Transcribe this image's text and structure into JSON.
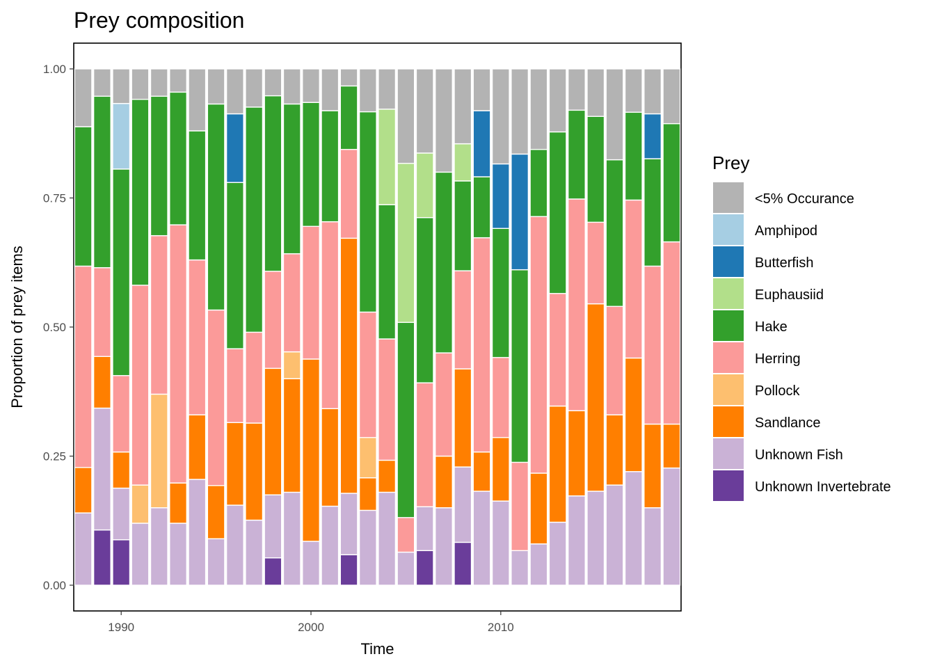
{
  "chart_data": {
    "type": "bar",
    "stacked": true,
    "title": "Prey composition",
    "xlabel": "Time",
    "ylabel": "Proportion of prey items",
    "xlim": [
      1987.5,
      2019.5
    ],
    "ylim": [
      0,
      1
    ],
    "x_ticks": [
      1990,
      2000,
      2010
    ],
    "y_ticks": [
      "0.00",
      "0.25",
      "0.50",
      "0.75",
      "1.00"
    ],
    "grid": false,
    "legend": {
      "title": "Prey",
      "position": "right",
      "entries": [
        {
          "name": "<5% Occurance",
          "color": "#b3b3b3"
        },
        {
          "name": "Amphipod",
          "color": "#a6cee3"
        },
        {
          "name": "Butterfish",
          "color": "#1f78b4"
        },
        {
          "name": "Euphausiid",
          "color": "#b2df8a"
        },
        {
          "name": "Hake",
          "color": "#33a02c"
        },
        {
          "name": "Herring",
          "color": "#fb9a99"
        },
        {
          "name": "Pollock",
          "color": "#fdbf6f"
        },
        {
          "name": "Sandlance",
          "color": "#ff7f00"
        },
        {
          "name": "Unknown Fish",
          "color": "#cab2d6"
        },
        {
          "name": "Unknown Invertebrate",
          "color": "#6a3d9a"
        }
      ]
    },
    "stack_order_bottom_to_top": [
      "Unknown Invertebrate",
      "Unknown Fish",
      "Sandlance",
      "Pollock",
      "Herring",
      "Hake",
      "Euphausiid",
      "Butterfish",
      "Amphipod",
      "<5% Occurance"
    ],
    "x": [
      1988,
      1989,
      1990,
      1991,
      1992,
      1993,
      1994,
      1995,
      1996,
      1997,
      1998,
      1999,
      2000,
      2001,
      2002,
      2003,
      2004,
      2005,
      2006,
      2007,
      2008,
      2009,
      2010,
      2011,
      2012,
      2013,
      2014,
      2015,
      2016,
      2017,
      2018,
      2019
    ],
    "series": [
      {
        "name": "Unknown Invertebrate",
        "values": [
          0,
          0.107,
          0.088,
          0,
          0,
          0,
          0,
          0,
          0,
          0,
          0.053,
          0,
          0,
          0,
          0.059,
          0,
          0,
          0,
          0.067,
          0,
          0.083,
          0,
          0,
          0,
          0,
          0,
          0,
          0,
          0,
          0,
          0,
          0
        ]
      },
      {
        "name": "Unknown Fish",
        "values": [
          0.14,
          0.236,
          0.1,
          0.12,
          0.15,
          0.12,
          0.205,
          0.09,
          0.155,
          0.126,
          0.122,
          0.18,
          0.085,
          0.153,
          0.119,
          0.145,
          0.18,
          0.064,
          0.085,
          0.15,
          0.146,
          0.182,
          0.163,
          0.067,
          0.08,
          0.122,
          0.173,
          0.182,
          0.194,
          0.22,
          0.15,
          0.227
        ]
      },
      {
        "name": "Sandlance",
        "values": [
          0.088,
          0.1,
          0.07,
          0,
          0,
          0.078,
          0.125,
          0.103,
          0.16,
          0.188,
          0.245,
          0.22,
          0.353,
          0.189,
          0.494,
          0.063,
          0.062,
          0,
          0,
          0.1,
          0.19,
          0.076,
          0.123,
          0,
          0.137,
          0.225,
          0.165,
          0.363,
          0.136,
          0.22,
          0.162,
          0.085
        ]
      },
      {
        "name": "Pollock",
        "values": [
          0,
          0,
          0,
          0.074,
          0.22,
          0,
          0,
          0,
          0,
          0,
          0,
          0.052,
          0,
          0,
          0,
          0.078,
          0,
          0,
          0,
          0,
          0,
          0,
          0,
          0,
          0,
          0,
          0,
          0,
          0,
          0,
          0,
          0
        ]
      },
      {
        "name": "Herring",
        "values": [
          0.39,
          0.172,
          0.148,
          0.387,
          0.307,
          0.5,
          0.3,
          0.34,
          0.143,
          0.176,
          0.188,
          0.19,
          0.257,
          0.362,
          0.172,
          0.243,
          0.235,
          0.067,
          0.24,
          0.2,
          0.19,
          0.415,
          0.155,
          0.171,
          0.497,
          0.218,
          0.41,
          0.158,
          0.21,
          0.306,
          0.306,
          0.353
        ]
      },
      {
        "name": "Hake",
        "values": [
          0.27,
          0.332,
          0.4,
          0.36,
          0.27,
          0.257,
          0.25,
          0.399,
          0.322,
          0.436,
          0.34,
          0.29,
          0.24,
          0.215,
          0.123,
          0.388,
          0.26,
          0.378,
          0.32,
          0.35,
          0.174,
          0.118,
          0.25,
          0.373,
          0.13,
          0.313,
          0.172,
          0.205,
          0.284,
          0.17,
          0.208,
          0.229
        ]
      },
      {
        "name": "Euphausiid",
        "values": [
          0,
          0,
          0,
          0,
          0,
          0,
          0,
          0,
          0,
          0,
          0,
          0,
          0,
          0,
          0,
          0,
          0.185,
          0.308,
          0.125,
          0,
          0.072,
          0,
          0,
          0,
          0,
          0,
          0,
          0,
          0,
          0,
          0,
          0
        ]
      },
      {
        "name": "Butterfish",
        "values": [
          0,
          0,
          0,
          0,
          0,
          0,
          0,
          0,
          0.133,
          0,
          0,
          0,
          0,
          0,
          0,
          0,
          0,
          0,
          0,
          0,
          0,
          0.128,
          0.125,
          0.224,
          0,
          0,
          0,
          0,
          0,
          0,
          0.087,
          0
        ]
      },
      {
        "name": "Amphipod",
        "values": [
          0,
          0,
          0.127,
          0,
          0,
          0,
          0,
          0,
          0,
          0,
          0,
          0,
          0,
          0,
          0,
          0,
          0,
          0,
          0,
          0,
          0,
          0,
          0,
          0,
          0,
          0,
          0,
          0,
          0,
          0,
          0,
          0
        ]
      },
      {
        "name": "<5% Occurance",
        "values": [
          0.112,
          0.053,
          0.067,
          0.059,
          0.053,
          0.045,
          0.12,
          0.068,
          0.087,
          0.074,
          0.052,
          0.068,
          0.065,
          0.081,
          0.033,
          0.083,
          0.078,
          0.183,
          0.163,
          0.2,
          0.145,
          0.081,
          0.184,
          0.165,
          0.156,
          0.122,
          0.08,
          0.092,
          0.176,
          0.084,
          0.087,
          0.106
        ]
      }
    ]
  }
}
